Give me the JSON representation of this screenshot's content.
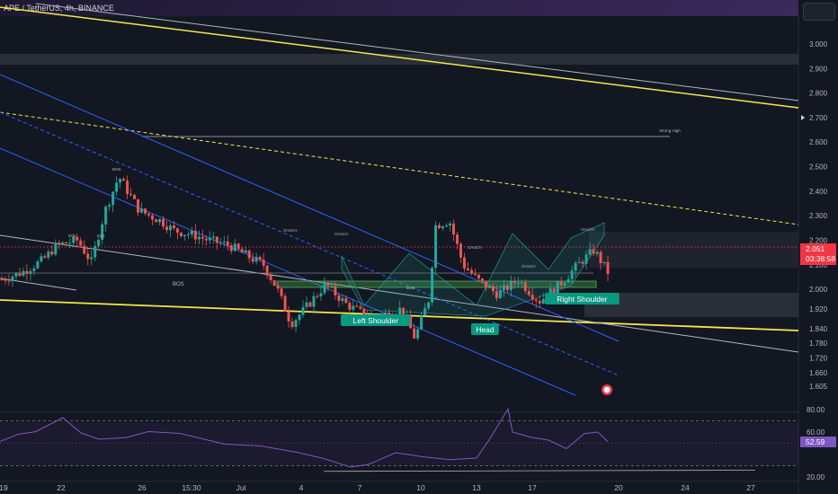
{
  "header": {
    "title": "APE / TetherUS, 4h, BINANCE"
  },
  "price_axis": {
    "ticks": [
      "3.000",
      "2.900",
      "2.800",
      "2.700",
      "2.600",
      "2.500",
      "2.400",
      "2.300",
      "2.200",
      "2.100",
      "2.000",
      "1.920",
      "1.840",
      "1.780",
      "1.720",
      "1.660",
      "1.605"
    ],
    "last_price": "2.051",
    "countdown": "03:38:58"
  },
  "rsi_axis": {
    "ticks": [
      "80.00",
      "60.00",
      "20.00"
    ],
    "value": "52.59"
  },
  "time_axis": {
    "ticks": [
      "19",
      "22",
      "26",
      "15:30",
      "Jul",
      "4",
      "7",
      "10",
      "13",
      "17",
      "20",
      "24",
      "27"
    ]
  },
  "annotations": {
    "left_shoulder": "Left Shoulder",
    "head": "Head",
    "right_shoulder": "Right Shoulder",
    "bos": "BOS",
    "strong_high": "Strong High",
    "choch": "CHoCH",
    "eql": "EQL"
  },
  "colors": {
    "up": "#26a69a",
    "down": "#ef5350",
    "bg": "#131722",
    "trend": "#f5e84a",
    "channel": "#2962ff",
    "rsi": "#7e57c2"
  },
  "chart_data": {
    "type": "candlestick",
    "symbol": "APE / TetherUS",
    "interval": "4h",
    "exchange": "BINANCE",
    "last_price": 2.051,
    "y_range": [
      1.56,
      3.06
    ],
    "pattern": "inverse head and shoulders",
    "path": [
      [
        0,
        2.04
      ],
      [
        6,
        2.07
      ],
      [
        12,
        2.12
      ],
      [
        16,
        2.18
      ],
      [
        22,
        2.2
      ],
      [
        26,
        2.11
      ],
      [
        30,
        2.32
      ],
      [
        34,
        2.46
      ],
      [
        40,
        2.32
      ],
      [
        46,
        2.28
      ],
      [
        50,
        2.24
      ],
      [
        56,
        2.22
      ],
      [
        60,
        2.2
      ],
      [
        66,
        2.18
      ],
      [
        72,
        2.13
      ],
      [
        76,
        2.1
      ],
      [
        80,
        2.0
      ],
      [
        84,
        1.86
      ],
      [
        88,
        1.92
      ],
      [
        94,
        2.02
      ],
      [
        100,
        1.94
      ],
      [
        106,
        1.89
      ],
      [
        112,
        1.9
      ],
      [
        116,
        1.92
      ],
      [
        120,
        1.8
      ],
      [
        124,
        1.96
      ],
      [
        126,
        2.26
      ],
      [
        130,
        2.28
      ],
      [
        134,
        2.1
      ],
      [
        138,
        2.04
      ],
      [
        144,
        1.98
      ],
      [
        150,
        2.04
      ],
      [
        156,
        1.95
      ],
      [
        162,
        2.02
      ],
      [
        168,
        2.11
      ],
      [
        172,
        2.16
      ],
      [
        176,
        2.07
      ]
    ],
    "rsi": {
      "value": 52.59,
      "levels": [
        70,
        30
      ],
      "ticks": [
        80,
        60,
        20
      ]
    }
  }
}
